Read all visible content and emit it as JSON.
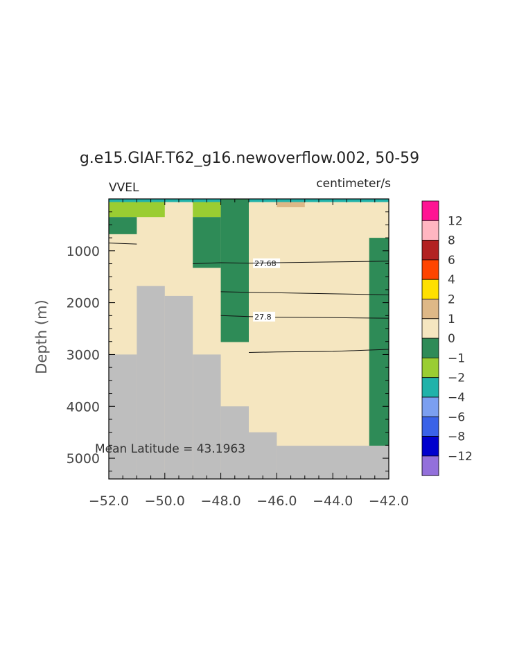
{
  "chart_data": {
    "type": "heatmap",
    "title": "g.e15.GIAF.T62_g16.newoverflow.002, 50-59",
    "variable": "VVEL",
    "units": "centimeter/s",
    "ylabel": "Depth (m)",
    "xlabel": "",
    "annotation": "Mean Latitude = 43.1963",
    "xlim": [
      -52.0,
      -42.0
    ],
    "ylim_depth": [
      0,
      5400
    ],
    "y_inverted": true,
    "x_ticks": [
      -52.0,
      -50.0,
      -48.0,
      -46.0,
      -44.0,
      -42.0
    ],
    "x_tick_labels": [
      "−52.0",
      "−50.0",
      "−48.0",
      "−46.0",
      "−44.0",
      "−42.0"
    ],
    "y_ticks": [
      1000,
      2000,
      3000,
      4000,
      5000
    ],
    "y_tick_labels": [
      "1000",
      "2000",
      "3000",
      "4000",
      "5000"
    ],
    "colorbar": {
      "colors": [
        "#ff1493",
        "#ffb6c1",
        "#b22222",
        "#ff4500",
        "#ffe000",
        "#deb887",
        "#f5e6c0",
        "#2e8b57",
        "#9acd32",
        "#20b2aa",
        "#7b9ff0",
        "#3a62e8",
        "#0000cd",
        "#9370db"
      ],
      "labels": [
        "12",
        "8",
        "6",
        "4",
        "2",
        "1",
        "0",
        "−1",
        "−2",
        "−4",
        "−6",
        "−8",
        "−12"
      ]
    },
    "land_color": "#bebebe",
    "background_value_color": "#f5e6c0",
    "cells": [
      {
        "x0": -52.0,
        "x1": -42.0,
        "d0": 0,
        "d1": 60,
        "value": "-2",
        "color": "#20b2aa"
      },
      {
        "x0": -52.0,
        "x1": -50.0,
        "d0": 60,
        "d1": 350,
        "value": "-1",
        "color": "#9acd32"
      },
      {
        "x0": -52.0,
        "x1": -51.0,
        "d0": 350,
        "d1": 680,
        "value": "0",
        "color": "#2e8b57"
      },
      {
        "x0": -49.0,
        "x1": -48.0,
        "d0": 60,
        "d1": 350,
        "value": "-1",
        "color": "#9acd32"
      },
      {
        "x0": -49.0,
        "x1": -48.0,
        "d0": 350,
        "d1": 1330,
        "value": "0",
        "color": "#2e8b57"
      },
      {
        "x0": -48.0,
        "x1": -47.0,
        "d0": 0,
        "d1": 2760,
        "value": "0",
        "color": "#2e8b57"
      },
      {
        "x0": -46.0,
        "x1": -45.0,
        "d0": 60,
        "d1": 160,
        "value": "2",
        "color": "#deb887"
      },
      {
        "x0": -42.7,
        "x1": -42.0,
        "d0": 750,
        "d1": 4760,
        "value": "0",
        "color": "#2e8b57"
      }
    ],
    "land": [
      {
        "x0": -52.0,
        "x1": -51.0,
        "d0": 3000,
        "d1": 5400
      },
      {
        "x0": -51.0,
        "x1": -50.0,
        "d0": 1680,
        "d1": 5400
      },
      {
        "x0": -50.0,
        "x1": -49.0,
        "d0": 1870,
        "d1": 5400
      },
      {
        "x0": -49.0,
        "x1": -48.0,
        "d0": 3000,
        "d1": 5400
      },
      {
        "x0": -48.0,
        "x1": -47.0,
        "d0": 4000,
        "d1": 5400
      },
      {
        "x0": -47.0,
        "x1": -46.0,
        "d0": 4500,
        "d1": 5400
      },
      {
        "x0": -46.0,
        "x1": -42.0,
        "d0": 4760,
        "d1": 5400
      }
    ],
    "contours": [
      {
        "label": "27.68",
        "label_at": [
          -46.8,
          1240
        ],
        "points": [
          [
            -52.0,
            850
          ],
          [
            -51.0,
            870
          ]
        ]
      },
      {
        "label": "27.68",
        "label_at": [
          -46.8,
          1240
        ],
        "points": [
          [
            -49.0,
            1250
          ],
          [
            -48.0,
            1230
          ],
          [
            -47.0,
            1240
          ],
          [
            -46.0,
            1230
          ],
          [
            -44.0,
            1215
          ],
          [
            -42.0,
            1200
          ]
        ]
      },
      {
        "label": "",
        "points": [
          [
            -48.0,
            1790
          ],
          [
            -47.0,
            1800
          ],
          [
            -46.0,
            1810
          ],
          [
            -44.0,
            1830
          ],
          [
            -42.0,
            1850
          ]
        ]
      },
      {
        "label": "27.8",
        "label_at": [
          -46.8,
          2270
        ],
        "points": [
          [
            -48.0,
            2250
          ],
          [
            -47.0,
            2270
          ],
          [
            -46.0,
            2280
          ],
          [
            -44.0,
            2290
          ],
          [
            -42.0,
            2300
          ]
        ]
      },
      {
        "label": "",
        "points": [
          [
            -47.0,
            2960
          ],
          [
            -46.0,
            2950
          ],
          [
            -44.0,
            2940
          ],
          [
            -43.0,
            2920
          ],
          [
            -42.0,
            2900
          ]
        ]
      }
    ]
  }
}
